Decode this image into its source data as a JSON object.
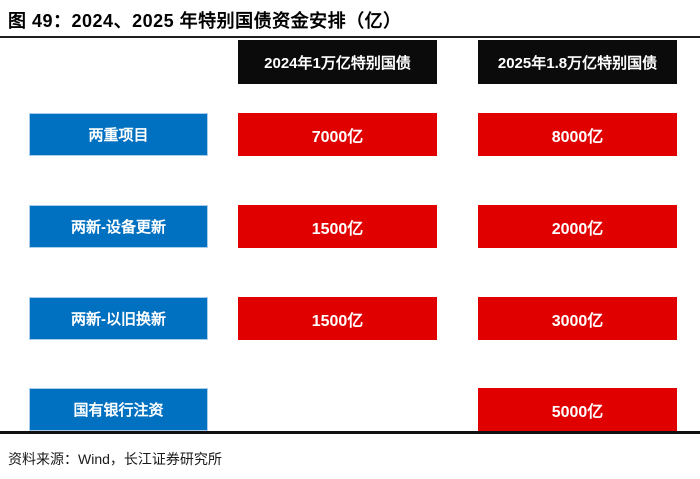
{
  "figure": {
    "title": "图 49：2024、2025 年特别国债资金安排（亿）",
    "source": "资料来源：Wind，长江证券研究所"
  },
  "colors": {
    "column_header_bg": "#0b0b0b",
    "row_label_bg": "#0070c0",
    "value_cell_bg": "#e00000",
    "text_on_dark": "#ffffff"
  },
  "chart_data": {
    "type": "table",
    "figure_no": "图 49",
    "title": "2024、2025 年特别国债资金安排（亿）",
    "unit": "亿元",
    "columns": [
      "2024年1万亿特别国债",
      "2025年1.8万亿特别国债"
    ],
    "categories": [
      "两重项目",
      "两新-设备更新",
      "两新-以旧换新",
      "国有银行注资"
    ],
    "rows": [
      {
        "label": "两重项目",
        "values": [
          "7000亿",
          "8000亿"
        ]
      },
      {
        "label": "两新-设备更新",
        "values": [
          "1500亿",
          "2000亿"
        ]
      },
      {
        "label": "两新-以旧换新",
        "values": [
          "1500亿",
          "3000亿"
        ]
      },
      {
        "label": "国有银行注资",
        "values": [
          null,
          "5000亿"
        ]
      }
    ],
    "series": [
      {
        "name": "2024年1万亿特别国债",
        "values": [
          7000,
          1500,
          1500,
          null
        ]
      },
      {
        "name": "2025年1.8万亿特别国债",
        "values": [
          8000,
          2000,
          3000,
          5000
        ]
      }
    ],
    "source": "资料来源：Wind，长江证券研究所"
  }
}
